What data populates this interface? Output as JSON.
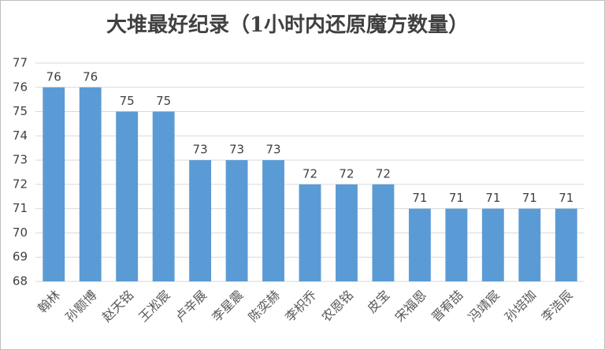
{
  "chart_data": {
    "type": "bar",
    "title": "大堆最好纪录（1小时内还原魔方数量）",
    "categories": [
      "翰林",
      "孙颢博",
      "赵天铭",
      "王凇宸",
      "卢辛展",
      "李星震",
      "陈奕赫",
      "李枳乔",
      "农恩铭",
      "皮宝",
      "宋福恩",
      "晋宥喆",
      "冯靖宸",
      "孙培珈",
      "李浩辰"
    ],
    "values": [
      76,
      76,
      75,
      75,
      73,
      73,
      73,
      72,
      72,
      72,
      71,
      71,
      71,
      71,
      71
    ],
    "color": "#5b9bd5",
    "ylim": [
      68,
      77
    ],
    "yticks": [
      68,
      69,
      70,
      71,
      72,
      73,
      74,
      75,
      76,
      77
    ],
    "grid": true
  }
}
